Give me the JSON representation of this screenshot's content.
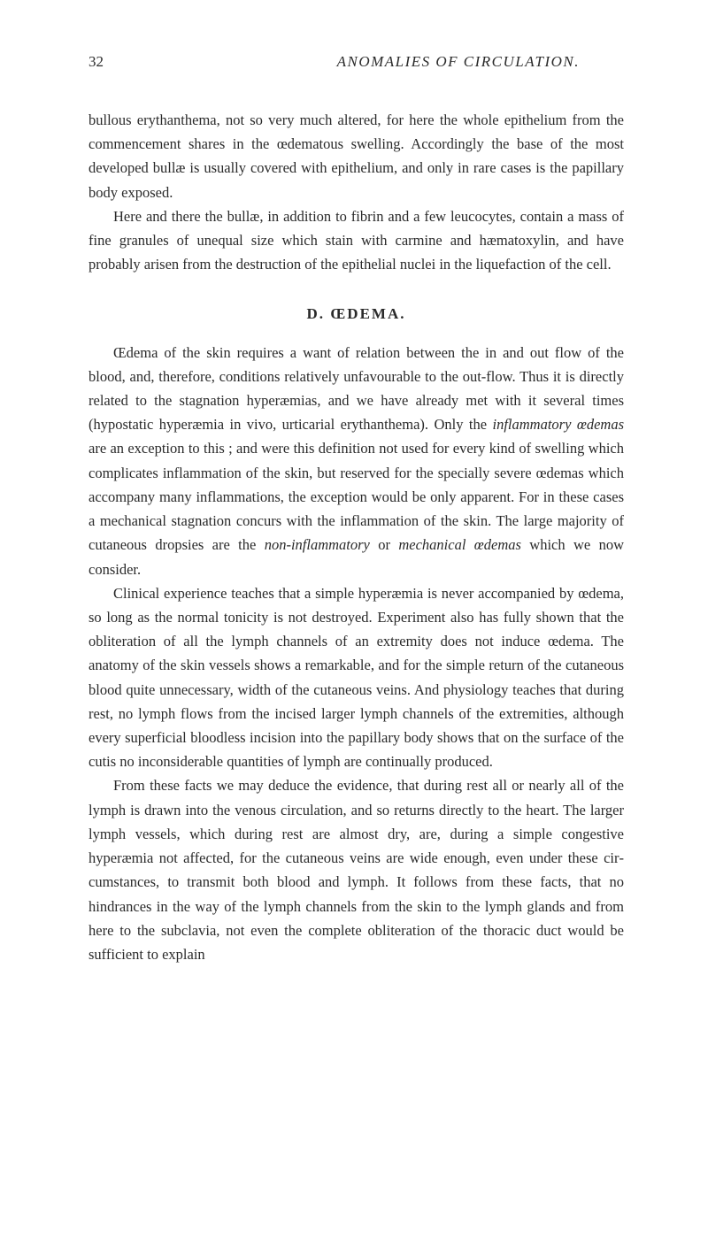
{
  "header": {
    "page_number": "32",
    "running_title": "ANOMALIES OF CIRCULATION."
  },
  "paragraphs": {
    "p1": "bullous erythanthema, not so very much altered, for here the whole epithelium from the commencement shares in the œdematous swelling. Accordingly the base of the most developed bullæ is usually covered with epithelium, and only in rare cases is the papillary body exposed.",
    "p2": "Here and there the bullæ, in addition to fibrin and a few leucocytes, contain a mass of fine granules of unequal size which stain with carmine and hæmatoxylin, and have probably arisen from the destruction of the epithelial nuclei in the liquefaction of the cell.",
    "p3_part1": "Œdema of the skin requires a want of relation between the in and out flow of the blood, and, therefore, conditions relatively unfavourable to the out-flow. Thus it is directly related to the stagnation hyperæ­mias, and we have already met with it several times (hypostatic hyperæmia in vivo, urticarial erythanthema). Only the ",
    "p3_italic1": "inflammatory œdemas",
    "p3_part2": " are an exception to this ; and were this definition not used for every kind of swelling which complicates inflammation of the skin, but reserved for the specially severe œdemas which accompany many in­flammations, the exception would be only apparent. For in these cases a mechanical stagnation concurs with the inflammation of the skin. The large majority of cutaneous dropsies are the ",
    "p3_italic2": "non-inflammatory",
    "p3_part3": " or ",
    "p3_italic3": "mechanical œdemas",
    "p3_part4": " which we now consider.",
    "p4": "Clinical experience teaches that a simple hyperæmia is never accompanied by œdema, so long as the normal tonicity is not de­stroyed. Experiment also has fully shown that the obliteration of all the lymph channels of an extremity does not induce œdema. The anatomy of the skin vessels shows a remarkable, and for the simple return of the cutaneous blood quite unnecessary, width of the cutaneous veins. And physiology teaches that during rest, no lymph flows from the incised larger lymph channels of the extremities, although every superficial bloodless incision into the papillary body shows that on the surface of the cutis no inconsiderable quantities of lymph are continu­ally produced.",
    "p5": "From these facts we may deduce the evidence, that during rest all or nearly all of the lymph is drawn into the venous circulation, and so returns directly to the heart. The larger lymph vessels, which during rest are almost dry, are, during a simple congestive hyperæmia not af­fected, for the cutaneous veins are wide enough, even under these cir­cumstances, to transmit both blood and lymph. It follows from these facts, that no hindrances in the way of the lymph channels from the skin to the lymph glands and from here to the subclavia, not even the complete obliteration of the thoracic duct would be sufficient to explain"
  },
  "section_heading": "D. ŒDEMA."
}
